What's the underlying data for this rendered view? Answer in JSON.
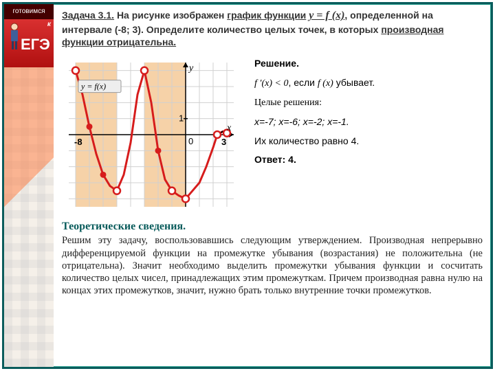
{
  "sidebar": {
    "top_text": "готовимся",
    "logo_text": "ЕГЭ",
    "logo_bg": "#c92020",
    "logo_color": "#ffffff",
    "top_bg": "#440000",
    "k_label": "к"
  },
  "problem": {
    "title": "Задача 3.1.",
    "text_1": "На рисунке изображен",
    "text_graph": "график функции",
    "func": "y = f (x)",
    "text_2": "определенной на интервале (-8; 3). Определите количество целых точек, в которых",
    "text_deriv": "производная функции отрицательна."
  },
  "chart": {
    "type": "line",
    "bg": "#ffffff",
    "grid_color": "#d0d0d0",
    "shade_color": "#f6d2a8",
    "axis_color": "#000000",
    "curve_color": "#d61c1c",
    "curve_width": 3,
    "xlim": [
      -8.5,
      3.5
    ],
    "ylim": [
      -4.5,
      4.5
    ],
    "grid_step": 1,
    "xlabel": "x",
    "ylabel": "y",
    "func_label": "y = f(x)",
    "tick_neg8": "-8",
    "tick_0": "0",
    "tick_1": "1",
    "tick_3": "3",
    "shaded_intervals": [
      [
        -8,
        -5
      ],
      [
        -3,
        0
      ]
    ],
    "curve_points": [
      [
        -8,
        4
      ],
      [
        -7.5,
        2.5
      ],
      [
        -7,
        0.5
      ],
      [
        -6.5,
        -1.2
      ],
      [
        -6,
        -2.5
      ],
      [
        -5.5,
        -3.2
      ],
      [
        -5,
        -3.5
      ],
      [
        -4.5,
        -2.5
      ],
      [
        -4,
        -0.5
      ],
      [
        -3.5,
        2.5
      ],
      [
        -3,
        4
      ],
      [
        -2.5,
        2
      ],
      [
        -2,
        -1
      ],
      [
        -1.5,
        -2.8
      ],
      [
        -1,
        -3.5
      ],
      [
        -0.5,
        -3.8
      ],
      [
        0,
        -4
      ],
      [
        0.5,
        -3.5
      ],
      [
        1,
        -3
      ],
      [
        1.5,
        -2
      ],
      [
        2,
        -0.8
      ],
      [
        2.3,
        0
      ],
      [
        2.7,
        0.2
      ],
      [
        3,
        0.1
      ]
    ],
    "open_points_at": [
      [
        -8,
        4
      ],
      [
        -5,
        -3.5
      ],
      [
        -3,
        4
      ],
      [
        0,
        -4
      ],
      [
        -1,
        -3.5
      ],
      [
        2.3,
        0
      ],
      [
        3,
        0.1
      ]
    ],
    "solid_points_at": [
      [
        -7,
        0.5
      ],
      [
        -6,
        -2.5
      ],
      [
        -2,
        -1
      ]
    ]
  },
  "solution": {
    "heading": "Решение.",
    "cond_math": "f ′(x) < 0",
    "cond_text": ", если",
    "cond_func": "f (x)",
    "cond_tail": "убывает.",
    "ints_label": "Целые решения:",
    "ints_values": "x=-7; x=-6; x=-2; x=-1.",
    "count_text": "Их количество равно 4.",
    "answer_label": "Ответ: 4."
  },
  "theory": {
    "title": "Теоретические сведения.",
    "body": "Решим эту задачу, воспользовавшись следующим утверждением. Производная непрерывно дифференцируемой функции на промежутке убывания (возрастания) не положительна (не отрицательна). Значит необходимо выделить промежутки убывания функции и сосчитать количество целых чисел, принадлежащих этим промежуткам. Причем производная равна нулю на концах этих промежутков, значит, нужно брать только внутренние точки промежутков."
  }
}
